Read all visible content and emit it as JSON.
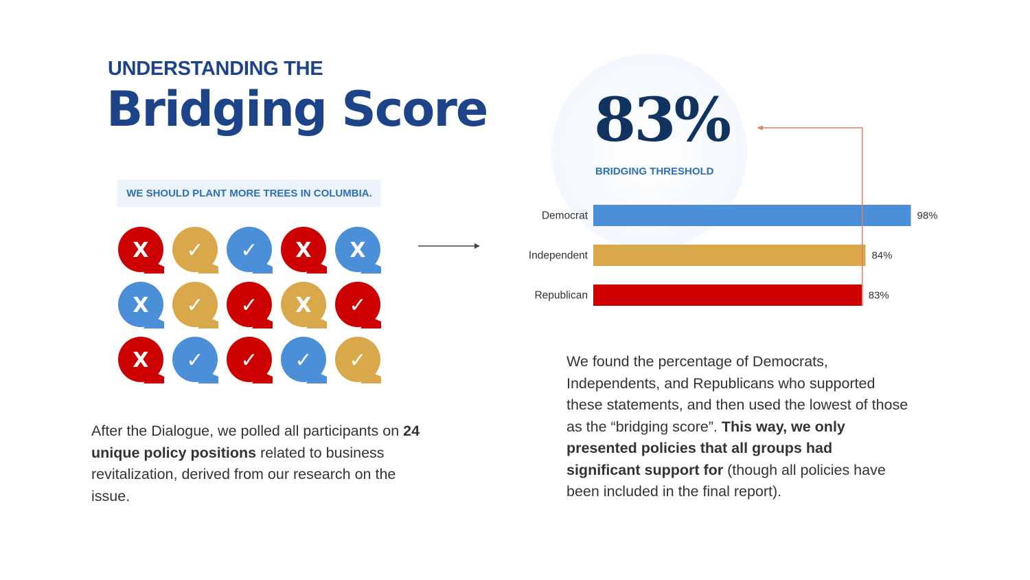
{
  "header": {
    "kicker": "UNDERSTANDING THE",
    "title": "Bridging Score"
  },
  "statement": "WE SHOULD PLANT MORE TREES IN COLUMBIA.",
  "vote_grid": {
    "colors": {
      "red": "#cc0000",
      "gold": "#d8a84a",
      "blue": "#4a8fd8"
    },
    "cells": [
      {
        "color": "red",
        "mark": "X"
      },
      {
        "color": "gold",
        "mark": "✓"
      },
      {
        "color": "blue",
        "mark": "✓"
      },
      {
        "color": "red",
        "mark": "X"
      },
      {
        "color": "blue",
        "mark": "X"
      },
      {
        "color": "blue",
        "mark": "X"
      },
      {
        "color": "gold",
        "mark": "✓"
      },
      {
        "color": "red",
        "mark": "✓"
      },
      {
        "color": "gold",
        "mark": "X"
      },
      {
        "color": "red",
        "mark": "✓"
      },
      {
        "color": "red",
        "mark": "X"
      },
      {
        "color": "blue",
        "mark": "✓"
      },
      {
        "color": "red",
        "mark": "✓"
      },
      {
        "color": "blue",
        "mark": "✓"
      },
      {
        "color": "gold",
        "mark": "✓"
      }
    ]
  },
  "threshold": {
    "value": "83%",
    "label": "BRIDGING THRESHOLD"
  },
  "chart_data": {
    "type": "bar",
    "orientation": "horizontal",
    "categories": [
      "Democrat",
      "Independent",
      "Republican"
    ],
    "values": [
      98,
      84,
      83
    ],
    "value_labels": [
      "98%",
      "84%",
      "83%"
    ],
    "colors": [
      "#4a8fd8",
      "#d8a84a",
      "#cc0000"
    ],
    "xlim": [
      0,
      100
    ],
    "threshold": 83,
    "threshold_color": "#e07f6a",
    "grid": false,
    "legend": "none"
  },
  "left_paragraph": {
    "part1": "After the Dialogue, we polled all participants on ",
    "bold": "24 unique policy positions",
    "part2": " related to business revitalization, derived from our research on the issue."
  },
  "right_paragraph": {
    "part1": "We found the percentage of Democrats, Independents, and Republicans who supported these statements, and then used the lowest of those as the “bridging score”. ",
    "bold": "This way, we only presented policies that all groups had significant support for",
    "part2": " (though all policies have been included in the final report)."
  }
}
